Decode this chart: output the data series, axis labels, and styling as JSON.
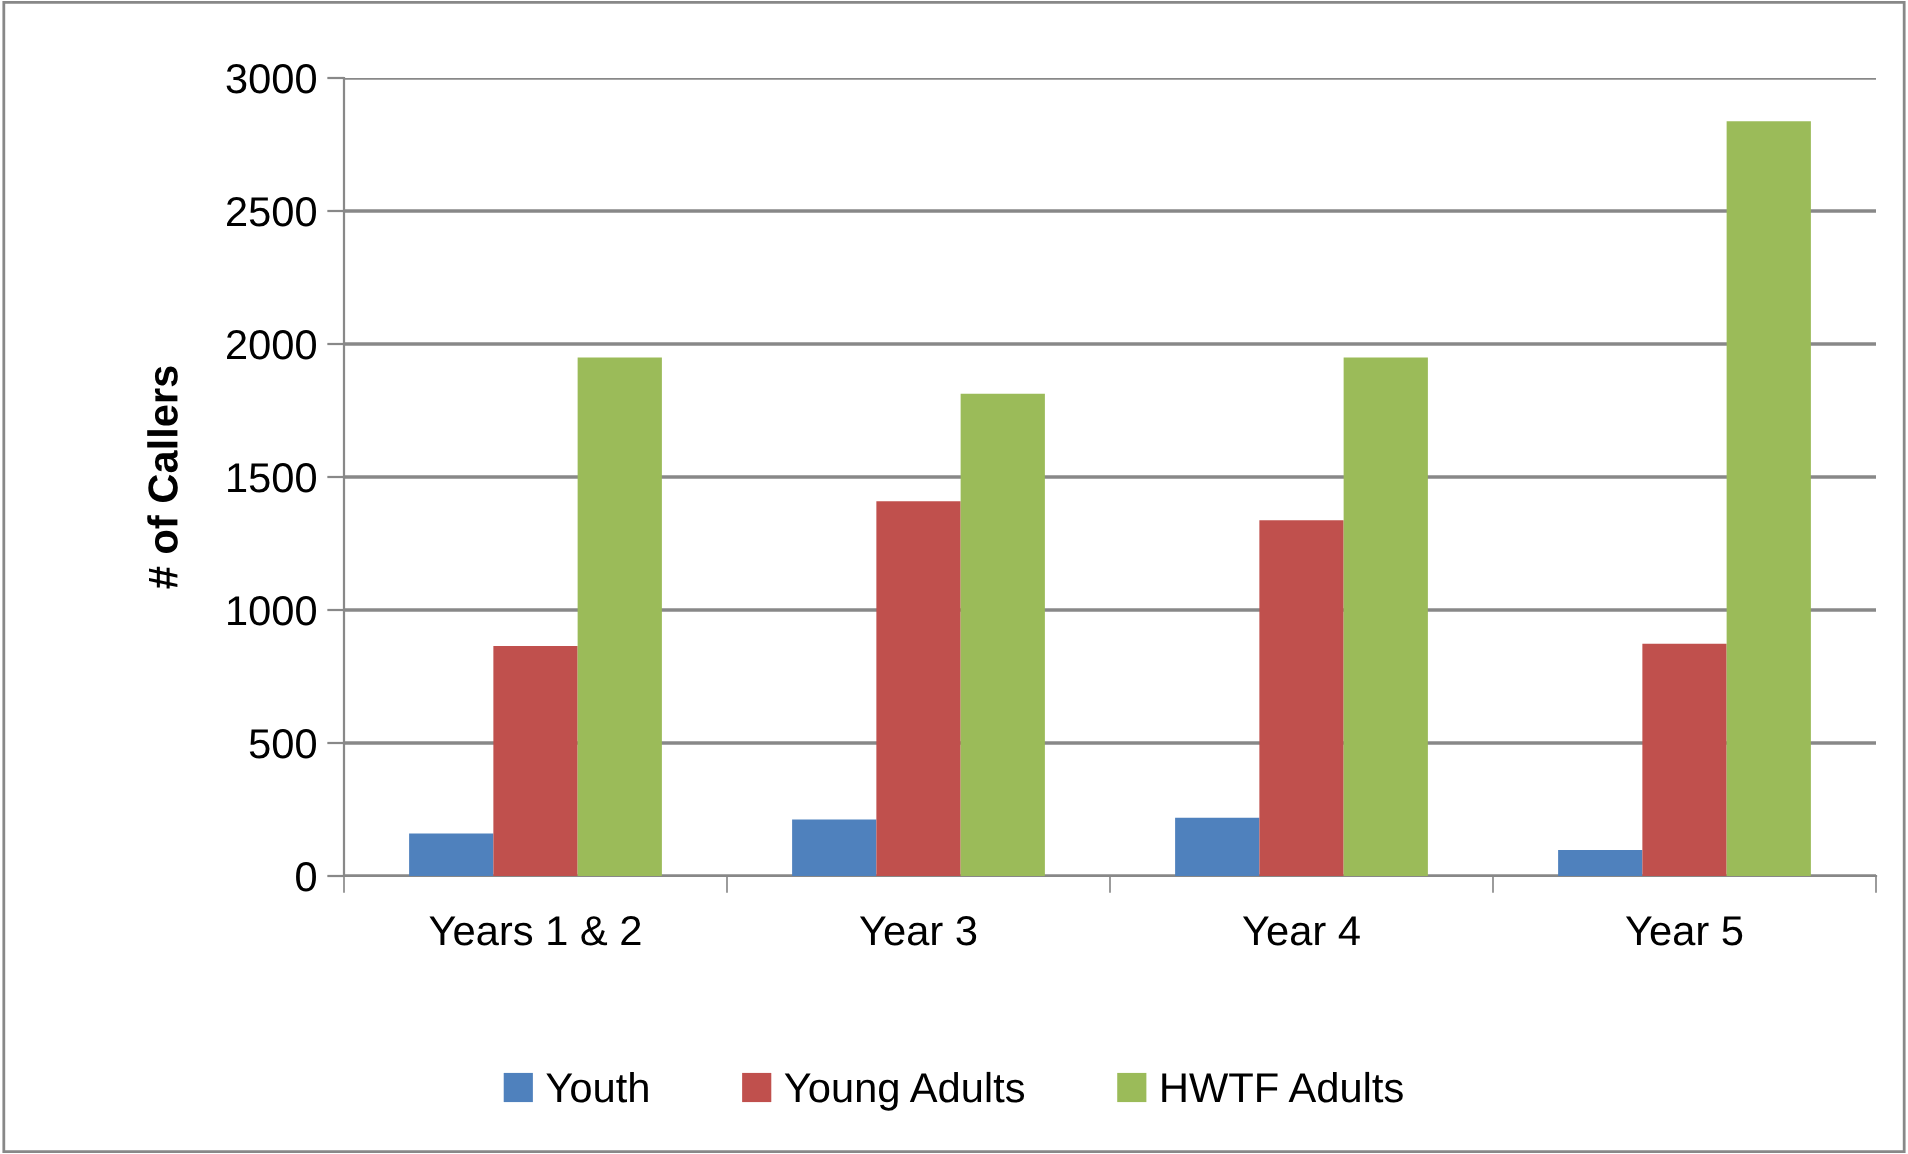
{
  "chart_data": {
    "type": "bar",
    "ylabel": "# of Callers",
    "categories": [
      "Years 1 & 2",
      "Year 3",
      "Year 4",
      "Year 5"
    ],
    "series": [
      {
        "name": "Youth",
        "color": "#4f81bd",
        "values": [
          160,
          212,
          219,
          98
        ]
      },
      {
        "name": "Young Adults",
        "color": "#c0504d",
        "values": [
          865,
          1409,
          1337,
          873
        ]
      },
      {
        "name": "HWTF Adults",
        "color": "#9bbb59",
        "values": [
          1949,
          1813,
          1949,
          2837
        ]
      }
    ],
    "ylim": [
      0,
      3000
    ],
    "yticks": [
      0,
      500,
      1000,
      1500,
      2000,
      2500,
      3000
    ],
    "grid": "y",
    "legend": "bottom"
  }
}
